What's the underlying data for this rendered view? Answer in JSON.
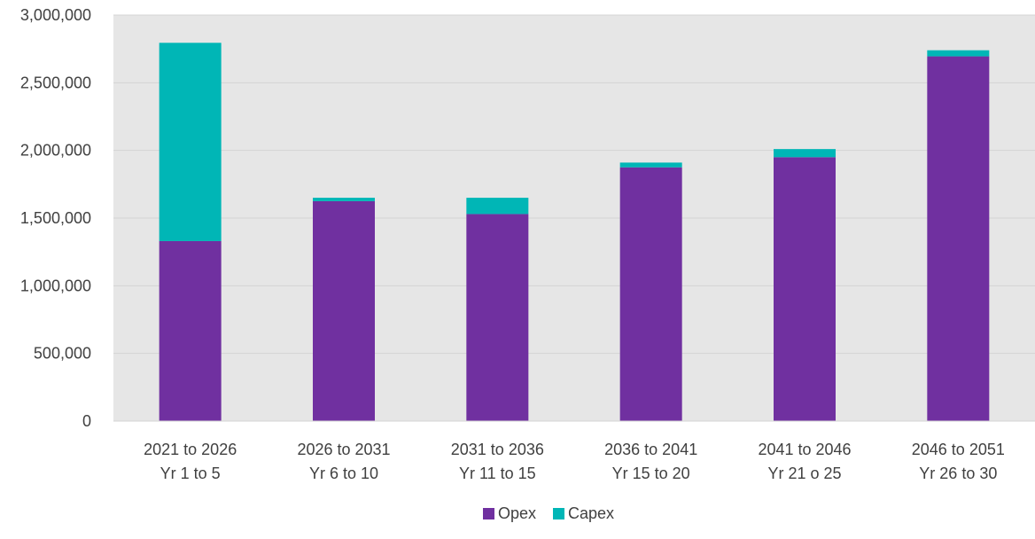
{
  "chart_data": {
    "type": "bar",
    "stacked": true,
    "title": "",
    "xlabel": "",
    "ylabel": "",
    "categories": [
      [
        "2021 to 2026",
        "Yr 1 to 5"
      ],
      [
        "2026 to 2031",
        "Yr 6 to 10"
      ],
      [
        "2031 to 2036",
        "Yr 11 to 15"
      ],
      [
        "2036 to 2041",
        "Yr 15 to 20"
      ],
      [
        "2041 to 2046",
        "Yr 21 o 25"
      ],
      [
        "2046 to 2051",
        "Yr 26 to 30"
      ]
    ],
    "series": [
      {
        "name": "Opex",
        "color": "#7030a0",
        "values": [
          1330000,
          1625000,
          1530000,
          1875000,
          1950000,
          2695000
        ]
      },
      {
        "name": "Capex",
        "color": "#00b6b6",
        "values": [
          1465000,
          25000,
          120000,
          35000,
          60000,
          45000
        ]
      }
    ],
    "ylim": [
      0,
      3000000
    ],
    "yticks": [
      0,
      500000,
      1000000,
      1500000,
      2000000,
      2500000,
      3000000
    ],
    "ytick_labels": [
      "0",
      "500,000",
      "1,000,000",
      "1,500,000",
      "2,000,000",
      "2,500,000",
      "3,000,000"
    ],
    "grid": true,
    "plot_background": "#e6e6e6",
    "gridline_color": "#d4d4d4",
    "legend_position": "bottom"
  }
}
